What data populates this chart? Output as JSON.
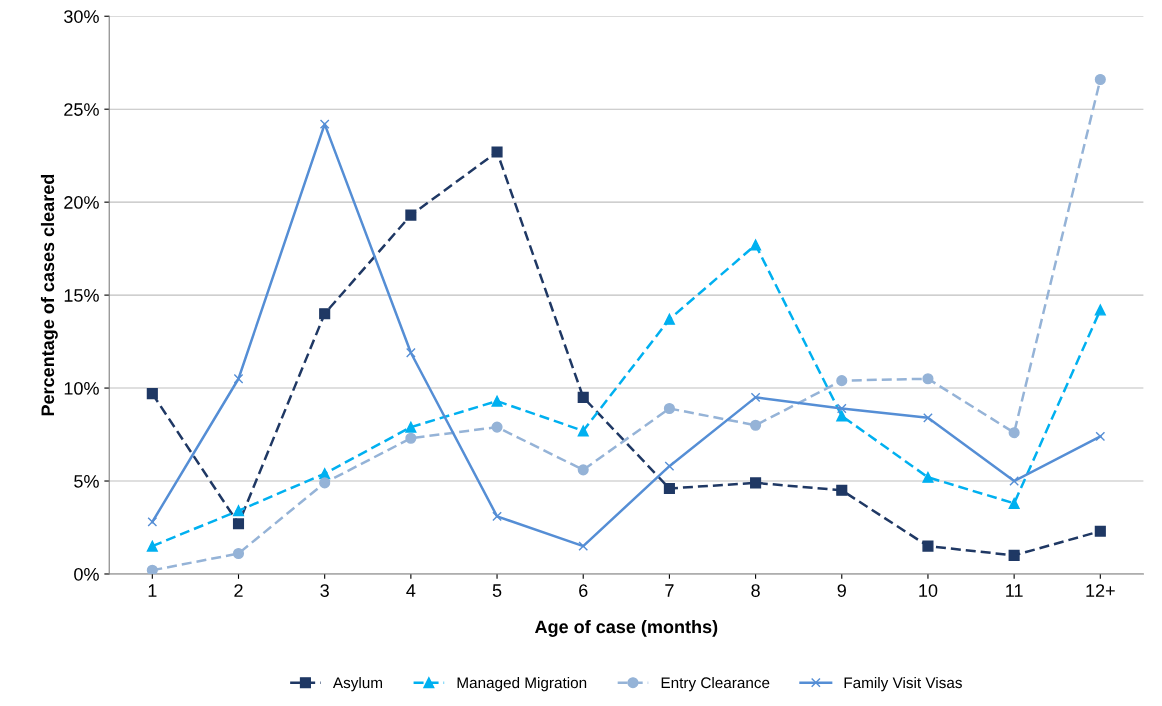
{
  "chart_data": {
    "type": "line",
    "xlabel": "Age of case (months)",
    "ylabel": "Percentage of cases cleared",
    "categories": [
      "1",
      "2",
      "3",
      "4",
      "5",
      "6",
      "7",
      "8",
      "9",
      "10",
      "11",
      "12+"
    ],
    "ylim": [
      0,
      30
    ],
    "yticks": [
      {
        "value": 0,
        "label": "0%"
      },
      {
        "value": 5,
        "label": "5%"
      },
      {
        "value": 10,
        "label": "10%"
      },
      {
        "value": 15,
        "label": "15%"
      },
      {
        "value": 20,
        "label": "20%"
      },
      {
        "value": 25,
        "label": "25%"
      },
      {
        "value": 30,
        "label": "30%"
      }
    ],
    "grid": "y",
    "legend": "bottom",
    "series": [
      {
        "name": "Asylum",
        "color": "#1f3864",
        "marker": "square",
        "line_style": "dashed",
        "values": [
          9.7,
          2.7,
          14.0,
          19.3,
          22.7,
          9.5,
          4.6,
          4.9,
          4.5,
          1.5,
          1.0,
          2.3
        ]
      },
      {
        "name": "Managed Migration",
        "color": "#00b0f0",
        "marker": "triangle",
        "line_style": "dashed",
        "values": [
          1.5,
          3.4,
          5.4,
          7.9,
          9.3,
          7.7,
          13.7,
          17.7,
          8.5,
          5.2,
          3.8,
          14.2
        ]
      },
      {
        "name": "Entry Clearance",
        "color": "#95b3d7",
        "marker": "circle",
        "line_style": "dashed",
        "values": [
          0.2,
          1.1,
          4.9,
          7.3,
          7.9,
          5.6,
          8.9,
          8.0,
          10.4,
          10.5,
          7.6,
          26.6
        ]
      },
      {
        "name": "Family Visit Visas",
        "color": "#558ed5",
        "marker": "cross",
        "line_style": "solid",
        "values": [
          2.8,
          10.5,
          24.2,
          11.9,
          3.1,
          1.5,
          5.8,
          9.5,
          8.9,
          8.4,
          5.0,
          7.4
        ]
      }
    ]
  }
}
